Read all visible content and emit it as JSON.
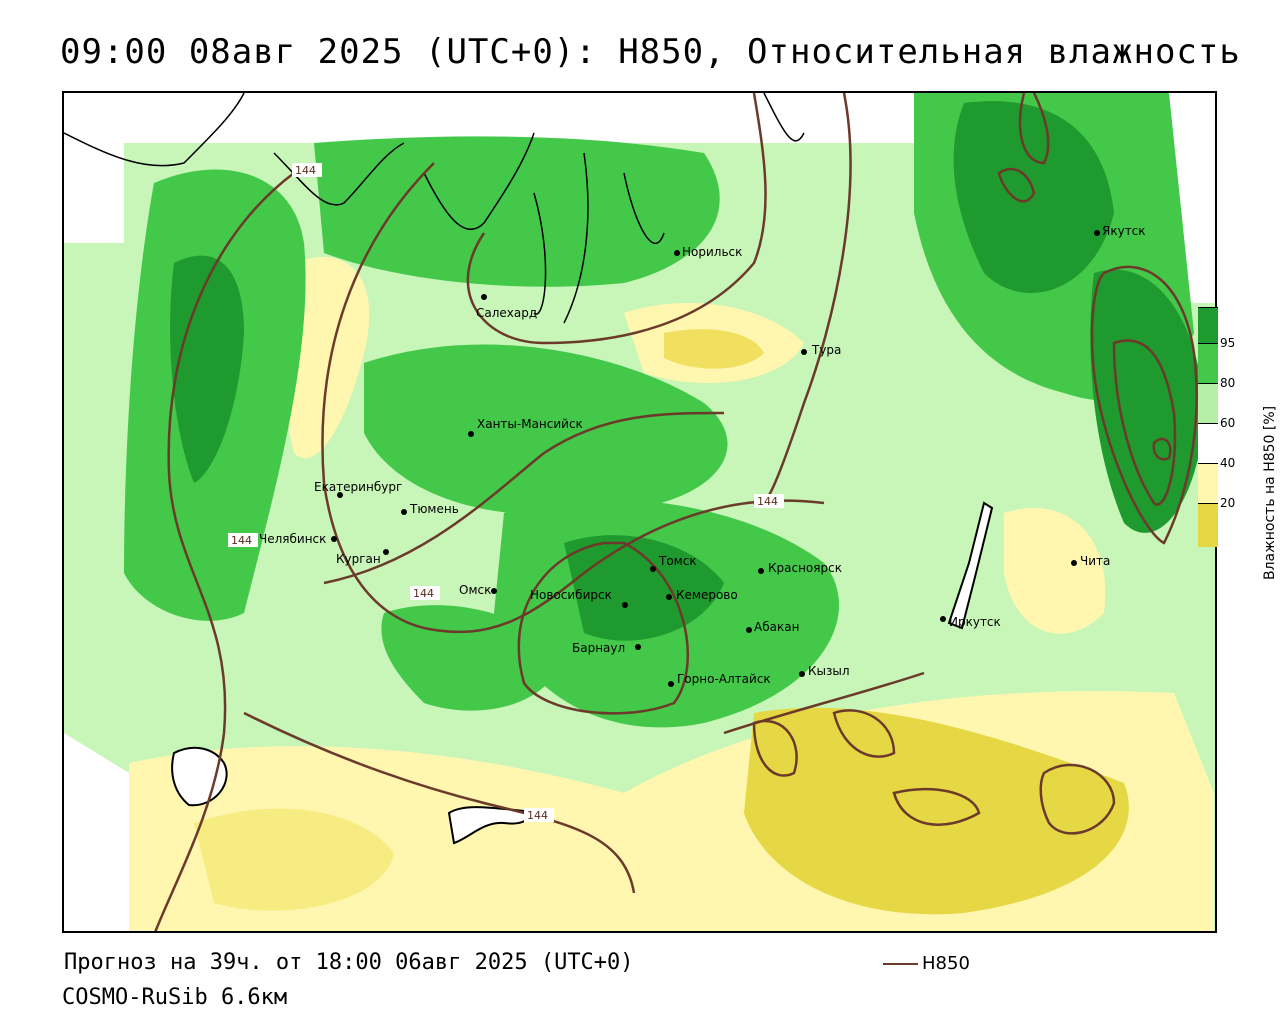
{
  "title": "09:00 08авг 2025 (UTC+0): H850, Относительная влажность",
  "forecast_text": "Прогноз на 39ч. от 18:00 06авг 2025 (UTC+0)",
  "model_text": "COSMO-RuSib 6.6км",
  "contour_legend": {
    "label": "H850",
    "color": "#6b3a2a"
  },
  "colorbar": {
    "title": "Влажность на H850 [%]",
    "ticks": [
      "95",
      "80",
      "60",
      "40",
      "20"
    ],
    "colors": [
      "#1f9a2e",
      "#44c84a",
      "#b6f0a8",
      "#ffffff",
      "#fff6b0",
      "#e6d845"
    ]
  },
  "contour_value_label": "144",
  "contour_labels": [
    "144",
    "144",
    "144",
    "144",
    "144"
  ],
  "cities": [
    {
      "name": "Норильск"
    },
    {
      "name": "Якутск"
    },
    {
      "name": "Салехард"
    },
    {
      "name": "Тура"
    },
    {
      "name": "Ханты-Мансийск"
    },
    {
      "name": "Екатеринбург"
    },
    {
      "name": "Тюмень"
    },
    {
      "name": "Челябинск"
    },
    {
      "name": "Курган"
    },
    {
      "name": "Омск"
    },
    {
      "name": "Новосибирск"
    },
    {
      "name": "Томск"
    },
    {
      "name": "Кемерово"
    },
    {
      "name": "Красноярск"
    },
    {
      "name": "Барнаул"
    },
    {
      "name": "Абакан"
    },
    {
      "name": "Горно-Алтайск"
    },
    {
      "name": "Кызыл"
    },
    {
      "name": "Иркутск"
    },
    {
      "name": "Чита"
    }
  ]
}
